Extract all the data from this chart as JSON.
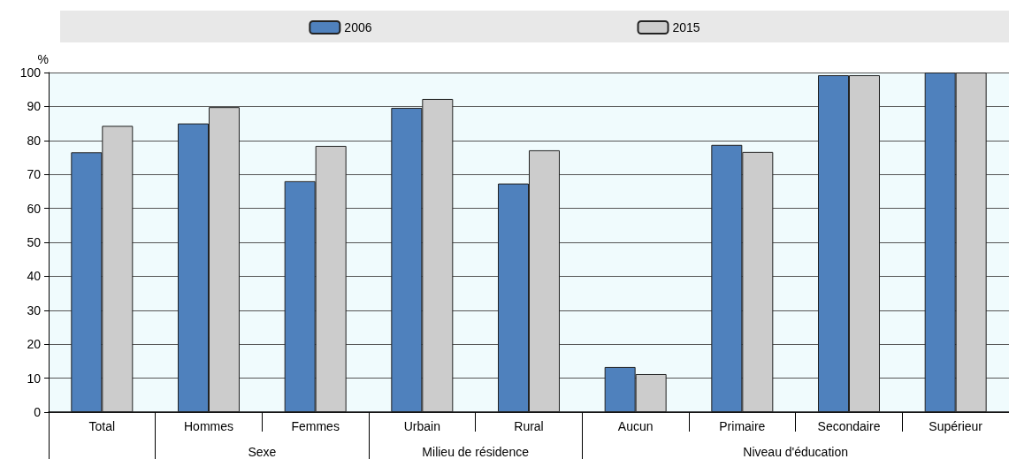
{
  "chart_data": {
    "type": "bar",
    "ylabel": "%",
    "categories": [
      "Total",
      "Hommes",
      "Femmes",
      "Urbain",
      "Rural",
      "Aucun",
      "Primaire",
      "Secondaire",
      "Supérieur"
    ],
    "series": [
      {
        "name": "2006",
        "color": "#4f81bd",
        "values": [
          76.5,
          85,
          68,
          89.6,
          67.3,
          13.3,
          78.7,
          99.2,
          100
        ]
      },
      {
        "name": "2015",
        "color": "#cccccc",
        "values": [
          84.3,
          89.8,
          78.4,
          92.2,
          77.1,
          11.2,
          76.6,
          99.2,
          100
        ]
      }
    ],
    "annotations": [
      "Sexe",
      "Milieu de résidence",
      "Niveau d'éducation"
    ],
    "ylim": [
      0,
      100
    ],
    "yticks": [
      0,
      10,
      20,
      30,
      40,
      50,
      60,
      70,
      80,
      90,
      100
    ],
    "grid": "y",
    "legend": "top"
  }
}
